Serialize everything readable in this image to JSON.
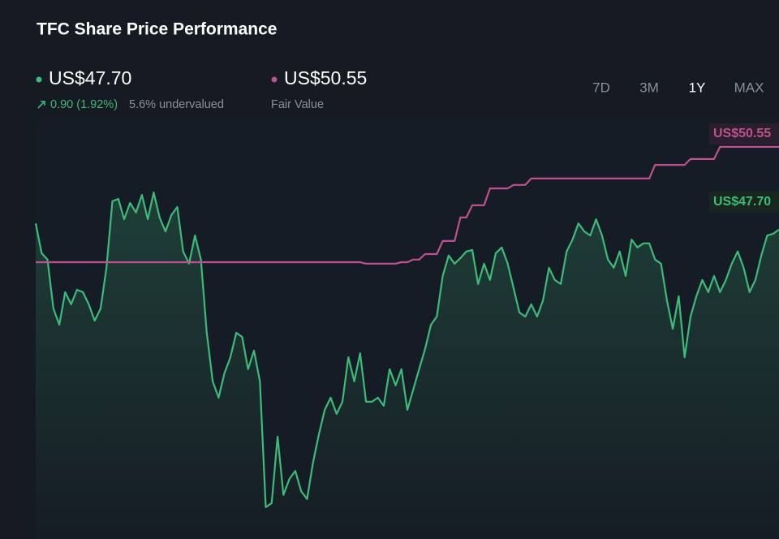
{
  "chart_data": {
    "type": "line",
    "title": "TFC Share Price Performance",
    "price_label": "US$47.70",
    "change_label": "0.90 (1.92%)",
    "valuation_label": "5.6% undervalued",
    "fair_value_label": "US$50.55",
    "ranges": [
      "7D",
      "3M",
      "1Y",
      "MAX"
    ],
    "active_range": 2,
    "ylim": [
      37,
      52
    ],
    "series": [
      {
        "color": "#3dbb78",
        "values": [
          47.92,
          46.89,
          46.67,
          44.99,
          44.43,
          45.55,
          45.13,
          45.63,
          45.55,
          45.13,
          44.57,
          44.99,
          46.39,
          48.68,
          48.76,
          48.06,
          48.62,
          48.29,
          48.9,
          48.06,
          48.98,
          48.12,
          47.64,
          48.2,
          48.48,
          46.95,
          46.53,
          47.5,
          46.67,
          44.15,
          42.48,
          41.92,
          42.76,
          43.31,
          44.15,
          44.01,
          42.9,
          43.54,
          42.48,
          38.15,
          38.29,
          40.58,
          38.57,
          39.12,
          39.4,
          38.7,
          38.43,
          39.68,
          40.66,
          41.5,
          41.92,
          41.36,
          41.78,
          43.31,
          42.48,
          43.45,
          41.78,
          41.78,
          41.92,
          41.64,
          42.9,
          42.34,
          42.9,
          41.5,
          42.2,
          42.9,
          43.59,
          44.43,
          44.71,
          46.11,
          46.81,
          46.53,
          46.72,
          46.95,
          47.0,
          45.83,
          46.53,
          45.97,
          46.89,
          47.09,
          46.53,
          45.69,
          44.85,
          44.71,
          45.13,
          44.71,
          45.27,
          46.39,
          45.97,
          45.83,
          46.95,
          47.36,
          47.92,
          47.64,
          47.5,
          48.06,
          47.5,
          46.67,
          46.39,
          46.95,
          46.11,
          47.36,
          47.09,
          47.23,
          47.23,
          46.67,
          46.53,
          45.27,
          44.29,
          45.41,
          43.31,
          44.71,
          45.41,
          45.97,
          45.55,
          46.11,
          45.55,
          45.97,
          46.53,
          46.95,
          46.39,
          45.55,
          45.97,
          46.81,
          47.5,
          47.56,
          47.7
        ]
      },
      {
        "name": "Fair Value",
        "color": "#c0508f",
        "values": [
          46.58,
          46.58,
          46.58,
          46.58,
          46.58,
          46.58,
          46.58,
          46.58,
          46.58,
          46.58,
          46.58,
          46.58,
          46.58,
          46.58,
          46.58,
          46.58,
          46.58,
          46.58,
          46.58,
          46.58,
          46.58,
          46.58,
          46.58,
          46.58,
          46.58,
          46.58,
          46.58,
          46.58,
          46.58,
          46.58,
          46.58,
          46.58,
          46.58,
          46.58,
          46.58,
          46.58,
          46.58,
          46.58,
          46.58,
          46.58,
          46.58,
          46.58,
          46.58,
          46.58,
          46.58,
          46.58,
          46.58,
          46.58,
          46.58,
          46.58,
          46.58,
          46.58,
          46.58,
          46.58,
          46.58,
          46.58,
          46.53,
          46.53,
          46.53,
          46.53,
          46.53,
          46.53,
          46.58,
          46.58,
          46.67,
          46.67,
          46.86,
          46.86,
          46.86,
          47.31,
          47.31,
          47.31,
          48.12,
          48.12,
          48.54,
          48.54,
          48.54,
          49.12,
          49.12,
          49.12,
          49.12,
          49.24,
          49.24,
          49.24,
          49.46,
          49.46,
          49.46,
          49.46,
          49.46,
          49.46,
          49.46,
          49.46,
          49.46,
          49.46,
          49.46,
          49.46,
          49.46,
          49.46,
          49.46,
          49.46,
          49.46,
          49.46,
          49.46,
          49.46,
          49.46,
          49.93,
          49.93,
          49.93,
          49.93,
          49.93,
          49.93,
          50.13,
          50.13,
          50.13,
          50.13,
          50.13,
          50.55,
          50.55,
          50.55,
          50.55,
          50.55,
          50.55,
          50.55,
          50.55,
          50.55,
          50.55,
          50.55
        ]
      }
    ]
  }
}
